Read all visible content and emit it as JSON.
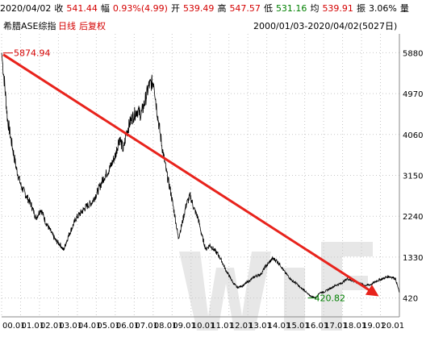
{
  "header": {
    "date": "2020/04/02",
    "close_label": "收",
    "close_value": "541.44",
    "change_label": "幅",
    "change_value": "0.93%(4.99)",
    "open_label": "开",
    "open_value": "539.49",
    "high_label": "高",
    "high_value": "547.57",
    "low_label": "低",
    "low_value": "531.16",
    "avg_label": "均",
    "avg_value": "539.91",
    "amp_label": "振",
    "amp_value": "3.06%",
    "more_label": "量"
  },
  "subheader": {
    "index_name": "希腊ASE综指",
    "chart_type": "日线",
    "adjust": "后复权",
    "range": "2000/01/03-2020/04/02(5027日)"
  },
  "colors": {
    "price_line": "#000000",
    "trend_arrow": "#e8231c",
    "grid": "#c7c7c7",
    "max_label": "#d40000",
    "min_label": "#008000"
  },
  "chart_data": {
    "type": "line",
    "ylim": [
      0,
      6300
    ],
    "y_ticks": [
      "5880",
      "4970",
      "4060",
      "3150",
      "2240",
      "1330",
      "420"
    ],
    "x_ticks": [
      "00.01",
      "01.01",
      "02.01",
      "03.01",
      "04.01",
      "05.01",
      "06.01",
      "07.01",
      "08.01",
      "09.01",
      "10.01",
      "11.01",
      "12.01",
      "13.01",
      "14.01",
      "15.01",
      "16.01",
      "17.01",
      "18.01",
      "19.01",
      "20.01"
    ],
    "x_year_range": [
      2000.0,
      2020.25
    ],
    "series": [
      {
        "x": [
          2000.0,
          2000.15,
          2000.3,
          2000.5,
          2000.75,
          2001.0,
          2001.25,
          2001.5,
          2001.75,
          2002.0,
          2002.25,
          2002.5,
          2002.75,
          2003.0,
          2003.15,
          2003.4,
          2003.6,
          2003.8,
          2004.0,
          2004.3,
          2004.6,
          2004.9,
          2005.2,
          2005.5,
          2005.8,
          2006.0,
          2006.2,
          2006.35,
          2006.6,
          2006.9,
          2007.1,
          2007.3,
          2007.5,
          2007.75,
          2007.85,
          2008.0,
          2008.2,
          2008.4,
          2008.6,
          2008.8,
          2009.0,
          2009.2,
          2009.4,
          2009.6,
          2009.8,
          2010.0,
          2010.2,
          2010.4,
          2010.6,
          2010.8,
          2011.0,
          2011.2,
          2011.4,
          2011.6,
          2011.8,
          2012.0,
          2012.3,
          2012.6,
          2012.9,
          2013.2,
          2013.4,
          2013.6,
          2013.8,
          2014.0,
          2014.2,
          2014.4,
          2014.6,
          2014.8,
          2015.0,
          2015.2,
          2015.4,
          2015.6,
          2015.8,
          2016.0,
          2016.2,
          2016.4,
          2016.6,
          2016.8,
          2017.0,
          2017.3,
          2017.6,
          2017.9,
          2018.2,
          2018.5,
          2018.8,
          2019.1,
          2019.4,
          2019.7,
          2019.9,
          2020.05,
          2020.15,
          2020.25
        ],
        "y": [
          5874.94,
          5200,
          4400,
          3900,
          3300,
          2900,
          2700,
          2500,
          2200,
          2400,
          2100,
          1900,
          1700,
          1600,
          1480,
          1800,
          2000,
          2200,
          2300,
          2450,
          2550,
          2800,
          3100,
          3300,
          3600,
          4000,
          3700,
          4100,
          4400,
          4600,
          4500,
          4800,
          5150,
          5250,
          4800,
          4300,
          3700,
          3200,
          2800,
          2300,
          1750,
          2100,
          2500,
          2700,
          2400,
          2200,
          1800,
          1500,
          1600,
          1500,
          1400,
          1250,
          1050,
          900,
          750,
          650,
          700,
          800,
          900,
          950,
          1100,
          1200,
          1300,
          1250,
          1150,
          1000,
          900,
          800,
          750,
          650,
          600,
          500,
          450,
          420.82,
          540,
          550,
          600,
          650,
          700,
          750,
          850,
          800,
          750,
          700,
          720,
          800,
          850,
          900,
          880,
          850,
          700,
          541.44
        ]
      }
    ],
    "max_label": "5874.94",
    "min_label": "420.82",
    "annotation": "downward trend arrow from 2000 peak to 2020"
  }
}
